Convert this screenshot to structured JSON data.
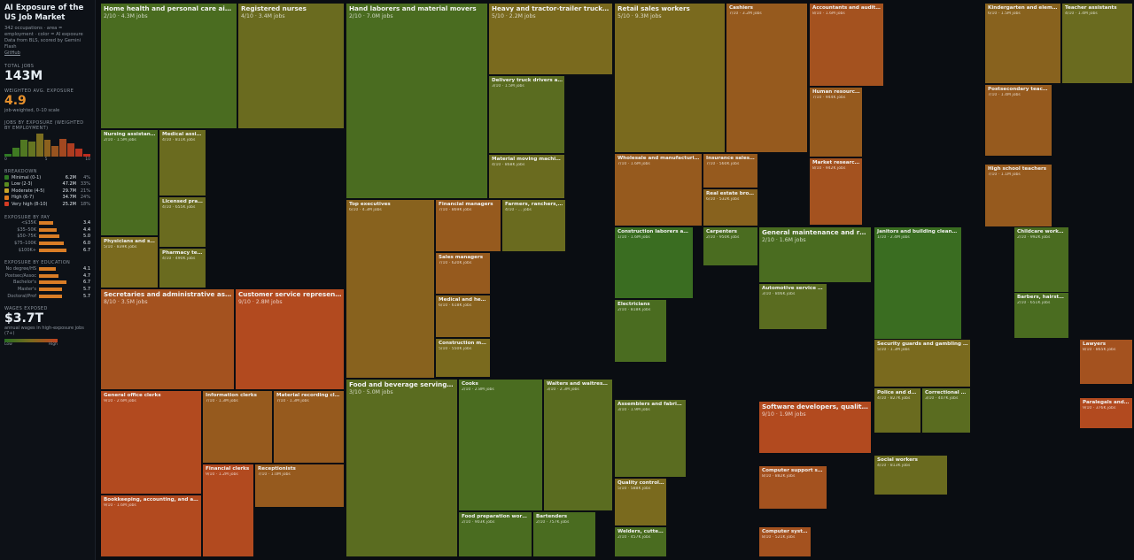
{
  "sidebar": {
    "title": "AI Exposure of the US Job Market",
    "subtitle": "342 occupations · area = employment · color = AI exposure",
    "source": "Data from BLS, scored by Gemini Flash",
    "github": "GitHub",
    "total_jobs_label": "TOTAL JOBS",
    "total_jobs": "143M",
    "avg_label": "WEIGHTED AVG. EXPOSURE",
    "avg_value": "4.9",
    "avg_note": "job-weighted, 0–10 scale",
    "hist_label": "JOBS BY EXPOSURE (WEIGHTED BY EMPLOYMENT)",
    "hist": {
      "values": [
        3,
        10,
        20,
        18,
        27,
        20,
        12,
        21,
        16,
        9,
        3
      ],
      "colors": [
        "#2f7a24",
        "#3f7a22",
        "#517822",
        "#657522",
        "#7b6e20",
        "#8c611e",
        "#985420",
        "#a24820",
        "#ad3d20",
        "#b63420",
        "#bd2d1f"
      ],
      "axis": [
        "0",
        "5",
        "10"
      ]
    },
    "breakdown_label": "BREAKDOWN",
    "breakdown": [
      {
        "label": "Minimal (0-1)",
        "value": "6.2M",
        "pct": "4%",
        "color": "#2e7a23"
      },
      {
        "label": "Low (2-3)",
        "value": "47.2M",
        "pct": "33%",
        "color": "#5a8a1f"
      },
      {
        "label": "Moderate (4-5)",
        "value": "29.7M",
        "pct": "21%",
        "color": "#c8a42a"
      },
      {
        "label": "High (6-7)",
        "value": "34.7M",
        "pct": "24%",
        "color": "#e07b1e"
      },
      {
        "label": "Very high (8-10)",
        "value": "25.2M",
        "pct": "18%",
        "color": "#d43b24"
      }
    ],
    "pay_label": "EXPOSURE BY PAY",
    "pay": [
      {
        "label": "<$35K",
        "value": 3.4
      },
      {
        "label": "$35–50K",
        "value": 4.4
      },
      {
        "label": "$50–75K",
        "value": 5.0
      },
      {
        "label": "$75–100K",
        "value": 6.0
      },
      {
        "label": "$100K+",
        "value": 6.7
      }
    ],
    "edu_label": "EXPOSURE BY EDUCATION",
    "edu": [
      {
        "label": "No degree/HS",
        "value": 4.1
      },
      {
        "label": "Postsec/Assoc",
        "value": 4.7
      },
      {
        "label": "Bachelor's",
        "value": 6.7
      },
      {
        "label": "Master's",
        "value": 5.7
      },
      {
        "label": "Doctoral/Prof",
        "value": 5.7
      }
    ],
    "wages_label": "WAGES EXPOSED",
    "wages_value": "$3.7T",
    "wages_note": "annual wages in high-exposure jobs (7+)",
    "legend_low": "Low",
    "legend_high": "High"
  },
  "chart_data": {
    "type": "treemap",
    "color_scale": {
      "low": "#2a6e22",
      "mid": "#7a6a1e",
      "high": "#c0421f"
    },
    "cells": [
      {
        "name": "Home health and personal care aides",
        "score": 2,
        "jobs": "4.3M"
      },
      {
        "name": "Registered nurses",
        "score": 4,
        "jobs": "3.4M"
      },
      {
        "name": "Nursing assistants and orderlies",
        "score": 2,
        "jobs": "1.5M"
      },
      {
        "name": "Medical assistants",
        "score": 4,
        "jobs": "811K"
      },
      {
        "name": "Licensed practical and licensed vocational nurses",
        "score": 4,
        "jobs": "655K"
      },
      {
        "name": "Pharmacy technicians",
        "score": 4,
        "jobs": "490K"
      },
      {
        "name": "Physicians and surgeons",
        "score": 5,
        "jobs": "839K"
      },
      {
        "name": "Secretaries and administrative assistants",
        "score": 8,
        "jobs": "3.5M"
      },
      {
        "name": "Customer service representatives",
        "score": 9,
        "jobs": "2.8M"
      },
      {
        "name": "General office clerks",
        "score": 9,
        "jobs": "2.6M"
      },
      {
        "name": "Information clerks",
        "score": 7,
        "jobs": "1.3M"
      },
      {
        "name": "Material recording clerks",
        "score": 7,
        "jobs": "1.3M"
      },
      {
        "name": "Financial clerks",
        "score": 9,
        "jobs": "1.2M"
      },
      {
        "name": "Receptionists",
        "score": 7,
        "jobs": "1.0M"
      },
      {
        "name": "Bookkeeping, accounting, and auditing clerks",
        "score": 9,
        "jobs": "1.6M"
      },
      {
        "name": "Hand laborers and material movers",
        "score": 2,
        "jobs": "7.0M"
      },
      {
        "name": "Heavy and tractor-trailer truck drivers",
        "score": 5,
        "jobs": "2.2M"
      },
      {
        "name": "Delivery truck drivers and driver/sales workers",
        "score": 3,
        "jobs": "1.5M"
      },
      {
        "name": "Material moving machine operators",
        "score": 4,
        "jobs": "868K"
      },
      {
        "name": "Top executives",
        "score": 6,
        "jobs": "4.3M"
      },
      {
        "name": "Financial managers",
        "score": 7,
        "jobs": "869K"
      },
      {
        "name": "Farmers, ranchers, and other agricultural managers",
        "score": 4,
        "jobs": "..."
      },
      {
        "name": "Sales managers",
        "score": 7,
        "jobs": "620K"
      },
      {
        "name": "Medical and health services managers",
        "score": 6,
        "jobs": "618K"
      },
      {
        "name": "Construction managers",
        "score": 5,
        "jobs": "550K"
      },
      {
        "name": "Food and beverage serving and related workers",
        "score": 3,
        "jobs": "5.0M"
      },
      {
        "name": "Cooks",
        "score": 2,
        "jobs": "2.8M"
      },
      {
        "name": "Waiters and waitresses",
        "score": 3,
        "jobs": "2.3M"
      },
      {
        "name": "Food preparation workers",
        "score": 2,
        "jobs": "903K"
      },
      {
        "name": "Bartenders",
        "score": 2,
        "jobs": "757K"
      },
      {
        "name": "Retail sales workers",
        "score": 5,
        "jobs": "9.3M"
      },
      {
        "name": "Cashiers",
        "score": 7,
        "jobs": "3.2M"
      },
      {
        "name": "Wholesale and manufacturing sales representatives",
        "score": 7,
        "jobs": "1.6M"
      },
      {
        "name": "Insurance sales agents",
        "score": 7,
        "jobs": "560K"
      },
      {
        "name": "Real estate brokers and sales agents",
        "score": 6,
        "jobs": "532K"
      },
      {
        "name": "Accountants and auditors",
        "score": 8,
        "jobs": "1.6M"
      },
      {
        "name": "Human resources specialists",
        "score": 7,
        "jobs": "944K"
      },
      {
        "name": "Market research analysts",
        "score": 8,
        "jobs": "942K"
      },
      {
        "name": "Kindergarten and elementary school teachers",
        "score": 6,
        "jobs": "1.5M"
      },
      {
        "name": "Teacher assistants",
        "score": 4,
        "jobs": "1.4M"
      },
      {
        "name": "Postsecondary teachers",
        "score": 7,
        "jobs": "1.4M"
      },
      {
        "name": "High school teachers",
        "score": 7,
        "jobs": "1.1M"
      },
      {
        "name": "Construction laborers and helpers",
        "score": 1,
        "jobs": "1.6M"
      },
      {
        "name": "Carpenters",
        "score": 2,
        "jobs": "950K"
      },
      {
        "name": "Electricians",
        "score": 2,
        "jobs": "818K"
      },
      {
        "name": "General maintenance and repair workers",
        "score": 2,
        "jobs": "1.6M"
      },
      {
        "name": "Automotive service technicians and mechanics",
        "score": 3,
        "jobs": "806K"
      },
      {
        "name": "Janitors and building cleaners",
        "score": 1,
        "jobs": "2.4M"
      },
      {
        "name": "Childcare workers",
        "score": 2,
        "jobs": "992K"
      },
      {
        "name": "Barbers, hairstylists, and cosmetologists",
        "score": 2,
        "jobs": "651K"
      },
      {
        "name": "Security guards and gambling surveillance officers",
        "score": 5,
        "jobs": "1.3M"
      },
      {
        "name": "Police and detectives",
        "score": 4,
        "jobs": "827K"
      },
      {
        "name": "Correctional officers",
        "score": 3,
        "jobs": "407K"
      },
      {
        "name": "Social workers",
        "score": 4,
        "jobs": "813K"
      },
      {
        "name": "Lawyers",
        "score": 8,
        "jobs": "865K"
      },
      {
        "name": "Paralegals and legal assistants",
        "score": 9,
        "jobs": "376K"
      },
      {
        "name": "Assemblers and fabricators",
        "score": 3,
        "jobs": "1.9M"
      },
      {
        "name": "Quality control inspectors",
        "score": 5,
        "jobs": "588K"
      },
      {
        "name": "Welders, cutters, solderers, and brazers",
        "score": 2,
        "jobs": "457K"
      },
      {
        "name": "Software developers, quality assurance analysts, and testers",
        "score": 9,
        "jobs": "1.9M"
      },
      {
        "name": "Computer support specialists",
        "score": 8,
        "jobs": "882K"
      },
      {
        "name": "Computer systems analysts",
        "score": 8,
        "jobs": "521K"
      }
    ]
  }
}
